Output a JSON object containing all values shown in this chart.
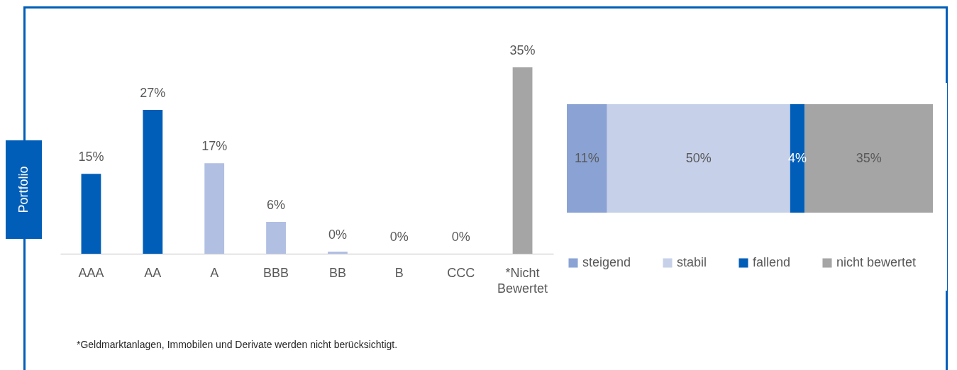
{
  "chart_data": [
    {
      "type": "bar",
      "ylabel": "Portfolio",
      "categories": [
        "AAA",
        "AA",
        "A",
        "BBB",
        "BB",
        "B",
        "CCC",
        "*Nicht Bewertet"
      ],
      "values": [
        15,
        27,
        17,
        6,
        0.4,
        0,
        0,
        35
      ],
      "value_labels": [
        "15%",
        "27%",
        "17%",
        "6%",
        "0%",
        "0%",
        "0%",
        "35%"
      ],
      "colors": [
        "#005eb8",
        "#005eb8",
        "#b0bfe2",
        "#b0bfe2",
        "#b0bfe2",
        "#b0bfe2",
        "#b0bfe2",
        "#a5a5a5"
      ],
      "annotations": [
        "*Geldmarktanlagen, Immobilen und Derivate werden nicht berücksichtigt."
      ]
    },
    {
      "type": "bar",
      "orientation": "horizontal",
      "stacked": true,
      "categories": [
        null
      ],
      "legend": "bottom",
      "series": [
        {
          "name": "steigend",
          "color": "#8ba3d4",
          "values": [
            11
          ],
          "value_labels": [
            "11%"
          ]
        },
        {
          "name": "stabil",
          "color": "#c6d0e9",
          "values": [
            50
          ],
          "value_labels": [
            "50%"
          ]
        },
        {
          "name": "fallend",
          "color": "#005eb8",
          "values": [
            4
          ],
          "value_labels": [
            "4%"
          ]
        },
        {
          "name": "nicht bewertet",
          "color": "#a5a5a5",
          "values": [
            35
          ],
          "value_labels": [
            "35%"
          ]
        }
      ]
    }
  ]
}
